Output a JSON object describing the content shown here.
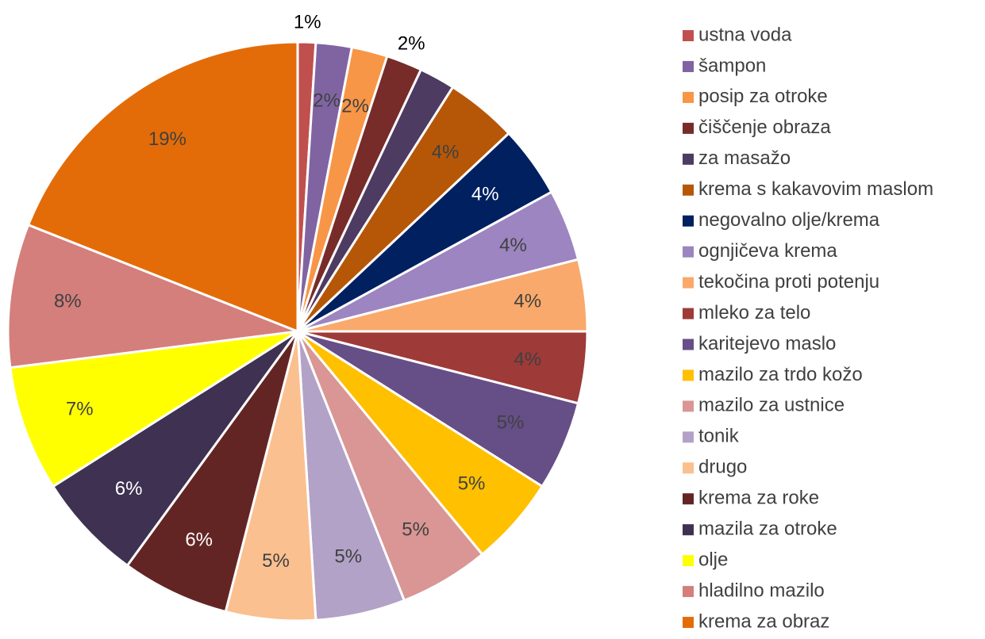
{
  "chart_data": {
    "type": "pie",
    "categories": [
      "ustna voda",
      "šampon",
      "posip za otroke",
      "čiščenje obraza",
      "za masažo",
      "krema s kakavovim maslom",
      "negovalno olje/krema",
      "ognjičeva krema",
      "tekočina proti potenju",
      "mleko za telo",
      "karitejevo maslo",
      "mazilo za trdo kožo",
      "mazilo za ustnice",
      "tonik",
      "drugo",
      "krema za roke",
      "mazila za otroke",
      "olje",
      "hladilno mazilo",
      "krema za obraz"
    ],
    "values": [
      1,
      2,
      2,
      2,
      2,
      4,
      4,
      4,
      4,
      4,
      5,
      5,
      5,
      5,
      5,
      6,
      6,
      7,
      8,
      19
    ],
    "value_labels": [
      "1%",
      "2%",
      "2%",
      "2%",
      null,
      "4%",
      "4%",
      "4%",
      "4%",
      "4%",
      "5%",
      "5%",
      "5%",
      "5%",
      "5%",
      "6%",
      "6%",
      "7%",
      "8%",
      "19%"
    ],
    "colors": [
      "#c0504d",
      "#8064a2",
      "#f79646",
      "#772c2a",
      "#4d3b62",
      "#b65708",
      "#002060",
      "#9c85c0",
      "#f9a96b",
      "#9e3a38",
      "#664e87",
      "#ffc000",
      "#d99694",
      "#b3a2c7",
      "#fac090",
      "#632523",
      "#3f3151",
      "#ffff00",
      "#d47f7c",
      "#e36c09"
    ],
    "legend": "right"
  }
}
